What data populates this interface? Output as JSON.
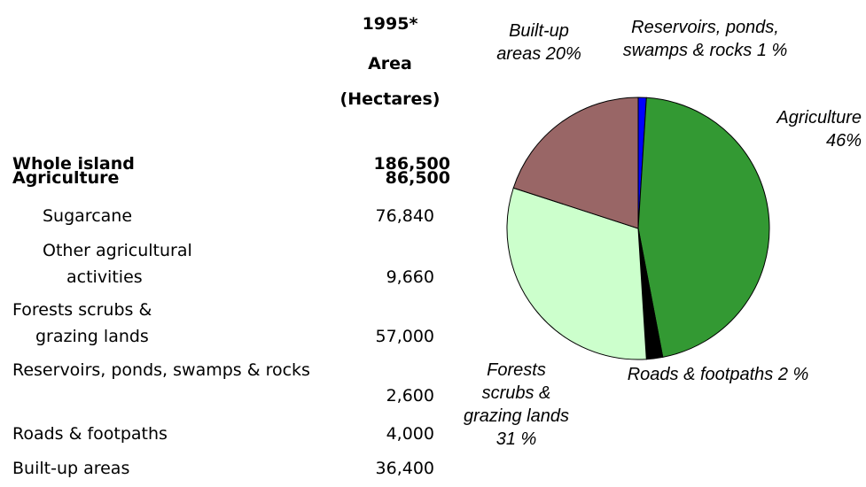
{
  "table": {
    "header": [
      "1995*",
      "Area",
      "(Hectares)"
    ],
    "rows": [
      [
        "Whole island",
        "186,500"
      ],
      [
        "Agriculture",
        "86,500"
      ],
      [
        "Sugarcane",
        "76,840"
      ],
      [
        "Other agricultural activities",
        "9,660"
      ],
      [
        "Forests scrubs & grazing lands",
        "57,000"
      ],
      [
        "Reservoirs, ponds, swamps & rocks",
        "2,600"
      ],
      [
        "Roads & footpaths",
        "4,000"
      ],
      [
        "Built-up areas",
        "36,400"
      ]
    ]
  },
  "chart_data": {
    "type": "pie",
    "categories": [
      "Reservoirs, ponds, swamps & rocks",
      "Agriculture",
      "Roads & footpaths",
      "Forests scrubs & grazing lands",
      "Built-up areas"
    ],
    "values": [
      1,
      46,
      2,
      31,
      20
    ],
    "value_labels": [
      "1 %",
      "46%",
      "2 %",
      "31 %",
      "20%"
    ],
    "colors": [
      "#0000ff",
      "#339933",
      "#000000",
      "#ccffcc",
      "#996666"
    ]
  }
}
